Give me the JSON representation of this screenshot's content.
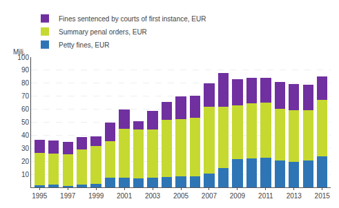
{
  "chart_data": {
    "type": "bar",
    "stacked": true,
    "ylabel": "Milj.",
    "categories": [
      1995,
      null,
      1997,
      null,
      1999,
      null,
      2001,
      null,
      2003,
      null,
      2005,
      null,
      2007,
      null,
      2009,
      null,
      2011,
      null,
      2013,
      null,
      2015
    ],
    "series": [
      {
        "name": "Petty fines, EUR",
        "color": "#2e75b6",
        "values": [
          1.5,
          2.0,
          1.0,
          2.0,
          2.5,
          7.5,
          7.5,
          7.0,
          7.5,
          8.0,
          8.5,
          8.5,
          10.5,
          15.0,
          21.5,
          22.0,
          22.5,
          20.5,
          19.5,
          20.5,
          24.0
        ]
      },
      {
        "name": "Summary penal orders, EUR",
        "color": "#c5d931",
        "values": [
          25.0,
          24.0,
          24.5,
          27.0,
          29.5,
          28.0,
          37.5,
          37.5,
          37.0,
          44.0,
          44.0,
          45.0,
          51.5,
          47.0,
          41.5,
          42.5,
          42.5,
          40.0,
          40.0,
          38.5,
          43.0
        ]
      },
      {
        "name": "Fines sentenced by courts of first instance, EUR",
        "color": "#7030a0",
        "values": [
          10.0,
          10.0,
          9.5,
          9.5,
          7.0,
          14.5,
          15.0,
          6.5,
          14.0,
          13.5,
          17.5,
          17.0,
          18.0,
          26.0,
          20.0,
          19.5,
          19.0,
          20.5,
          20.0,
          20.0,
          18.0
        ]
      }
    ],
    "ylim": [
      0,
      100
    ],
    "yticks": [
      10,
      20,
      30,
      40,
      50,
      60,
      70,
      80,
      90,
      100
    ],
    "grid": true,
    "legend": "upper left"
  }
}
